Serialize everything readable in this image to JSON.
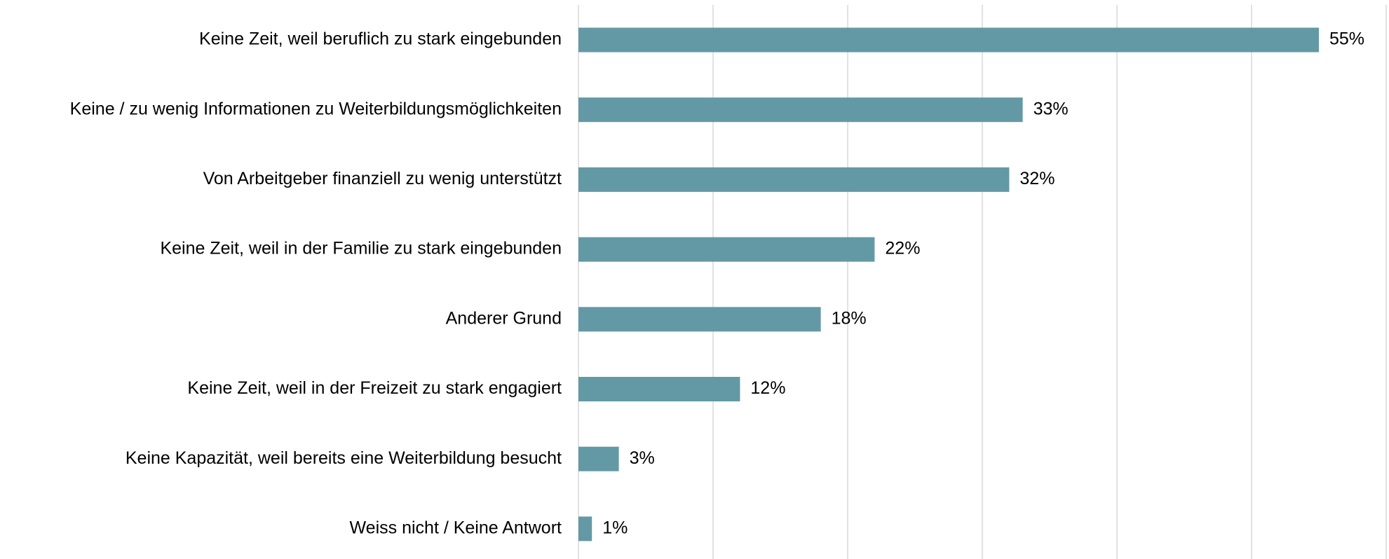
{
  "chart_data": {
    "type": "bar",
    "orientation": "horizontal",
    "categories": [
      "Keine Zeit, weil beruflich zu stark eingebunden",
      "Keine / zu wenig Informationen zu Weiterbildungsmöglichkeiten",
      "Von Arbeitgeber finanziell zu wenig unterstützt",
      "Keine Zeit, weil in der Familie zu stark eingebunden",
      "Anderer Grund",
      "Keine Zeit, weil in der Freizeit zu stark engagiert",
      "Keine Kapazität, weil bereits eine Weiterbildung besucht",
      "Weiss nicht / Keine Antwort"
    ],
    "values": [
      55,
      33,
      32,
      22,
      18,
      12,
      3,
      1
    ],
    "value_labels": [
      "55%",
      "33%",
      "32%",
      "22%",
      "18%",
      "12%",
      "3%",
      "1%"
    ],
    "color": "#6399a5",
    "xlim": [
      0,
      60
    ],
    "xticks": [
      0,
      10,
      20,
      30,
      40,
      50,
      60
    ],
    "grid": true
  }
}
